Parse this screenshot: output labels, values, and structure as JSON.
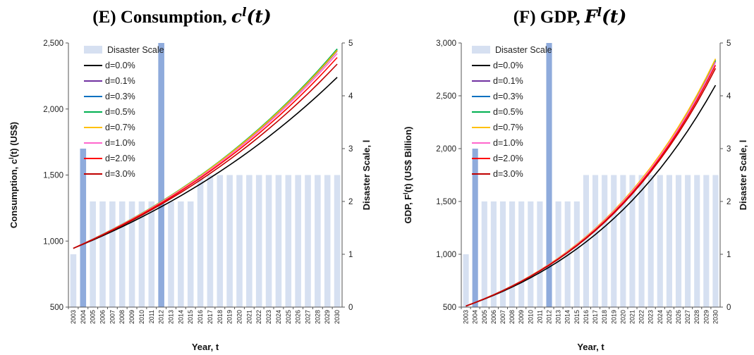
{
  "chart_data": [
    {
      "id": "E",
      "type": "line",
      "title_prefix": "(E) Consumption, ",
      "title_var": "c",
      "title_sup": "l",
      "title_arg": "(t)",
      "xlabel": "Year, t",
      "ylabel_left": "Consumption, c",
      "ylabel_left_sup": "l",
      "ylabel_left_rest": "(t)  (US$)",
      "ylabel_right": "Disaster Scale, l",
      "ylim_left": [
        500,
        2500
      ],
      "yticks_left": [
        "500",
        "1,000",
        "1,500",
        "2,000",
        "2,500"
      ],
      "yticks_left_values": [
        500,
        1000,
        1500,
        2000,
        2500
      ],
      "ylim_right": [
        0,
        5
      ],
      "yticks_right": [
        "0",
        "1",
        "2",
        "3",
        "4",
        "5"
      ],
      "x": [
        "2003",
        "2004",
        "2005",
        "2006",
        "2007",
        "2008",
        "2009",
        "2010",
        "2011",
        "2012",
        "2013",
        "2014",
        "2015",
        "2016",
        "2017",
        "2018",
        "2019",
        "2020",
        "2021",
        "2022",
        "2023",
        "2024",
        "2025",
        "2026",
        "2027",
        "2028",
        "2029",
        "2030"
      ],
      "disaster_scale": {
        "name": "Disaster Scale",
        "values": [
          1.0,
          3.0,
          2.0,
          2.0,
          2.0,
          2.0,
          2.0,
          2.0,
          2.0,
          5.0,
          2.0,
          2.0,
          2.0,
          2.5,
          2.5,
          2.5,
          2.5,
          2.5,
          2.5,
          2.5,
          2.5,
          2.5,
          2.5,
          2.5,
          2.5,
          2.5,
          2.5,
          2.5
        ],
        "highlight": [
          "2004",
          "2012"
        ],
        "color": "#d6e0f1",
        "highlight_color": "#8fabdc"
      },
      "series": [
        {
          "name": "d=0.0%",
          "color": "#000000",
          "start": 945,
          "end": 2240
        },
        {
          "name": "d=0.1%",
          "color": "#7030a0",
          "start": 945,
          "end": 2440
        },
        {
          "name": "d=0.3%",
          "color": "#0070c0",
          "start": 945,
          "end": 2450
        },
        {
          "name": "d=0.5%",
          "color": "#00b050",
          "start": 945,
          "end": 2455
        },
        {
          "name": "d=0.7%",
          "color": "#ffc000",
          "start": 945,
          "end": 2445
        },
        {
          "name": "d=1.0%",
          "color": "#ff66cc",
          "start": 945,
          "end": 2420
        },
        {
          "name": "d=2.0%",
          "color": "#ff0000",
          "start": 945,
          "end": 2390
        },
        {
          "name": "d=3.0%",
          "color": "#c00000",
          "start": 945,
          "end": 2340
        }
      ]
    },
    {
      "id": "F",
      "type": "line",
      "title_prefix": "(F) GDP, ",
      "title_var": "F",
      "title_sup": "l",
      "title_arg": "(t)",
      "xlabel": "Year, t",
      "ylabel_left": "GDP, F",
      "ylabel_left_sup": "l",
      "ylabel_left_rest": "(t)   (US$ Billion)",
      "ylabel_right": "Disaster Scale, l",
      "ylim_left": [
        500,
        3000
      ],
      "yticks_left": [
        "500",
        "1,000",
        "1,500",
        "2,000",
        "2,500",
        "3,000"
      ],
      "yticks_left_values": [
        500,
        1000,
        1500,
        2000,
        2500,
        3000
      ],
      "ylim_right": [
        0,
        5
      ],
      "yticks_right": [
        "0",
        "1",
        "2",
        "3",
        "4",
        "5"
      ],
      "x": [
        "2003",
        "2004",
        "2005",
        "2006",
        "2007",
        "2008",
        "2009",
        "2010",
        "2011",
        "2012",
        "2013",
        "2014",
        "2015",
        "2016",
        "2017",
        "2018",
        "2019",
        "2020",
        "2021",
        "2022",
        "2023",
        "2024",
        "2025",
        "2026",
        "2027",
        "2028",
        "2029",
        "2030"
      ],
      "disaster_scale": {
        "name": "Disaster Scale",
        "values": [
          1.0,
          3.0,
          2.0,
          2.0,
          2.0,
          2.0,
          2.0,
          2.0,
          2.0,
          5.0,
          2.0,
          2.0,
          2.0,
          2.5,
          2.5,
          2.5,
          2.5,
          2.5,
          2.5,
          2.5,
          2.5,
          2.5,
          2.5,
          2.5,
          2.5,
          2.5,
          2.5,
          2.5
        ],
        "highlight": [
          "2004",
          "2012"
        ],
        "color": "#d6e0f1",
        "highlight_color": "#8fabdc"
      },
      "series": [
        {
          "name": "d=0.0%",
          "color": "#000000",
          "start": 510,
          "end": 2600
        },
        {
          "name": "d=0.1%",
          "color": "#7030a0",
          "start": 510,
          "end": 2820
        },
        {
          "name": "d=0.3%",
          "color": "#0070c0",
          "start": 510,
          "end": 2830
        },
        {
          "name": "d=0.5%",
          "color": "#00b050",
          "start": 510,
          "end": 2840
        },
        {
          "name": "d=0.7%",
          "color": "#ffc000",
          "start": 510,
          "end": 2850
        },
        {
          "name": "d=1.0%",
          "color": "#ff66cc",
          "start": 510,
          "end": 2820
        },
        {
          "name": "d=2.0%",
          "color": "#ff0000",
          "start": 510,
          "end": 2790
        },
        {
          "name": "d=3.0%",
          "color": "#c00000",
          "start": 510,
          "end": 2760
        }
      ]
    }
  ]
}
